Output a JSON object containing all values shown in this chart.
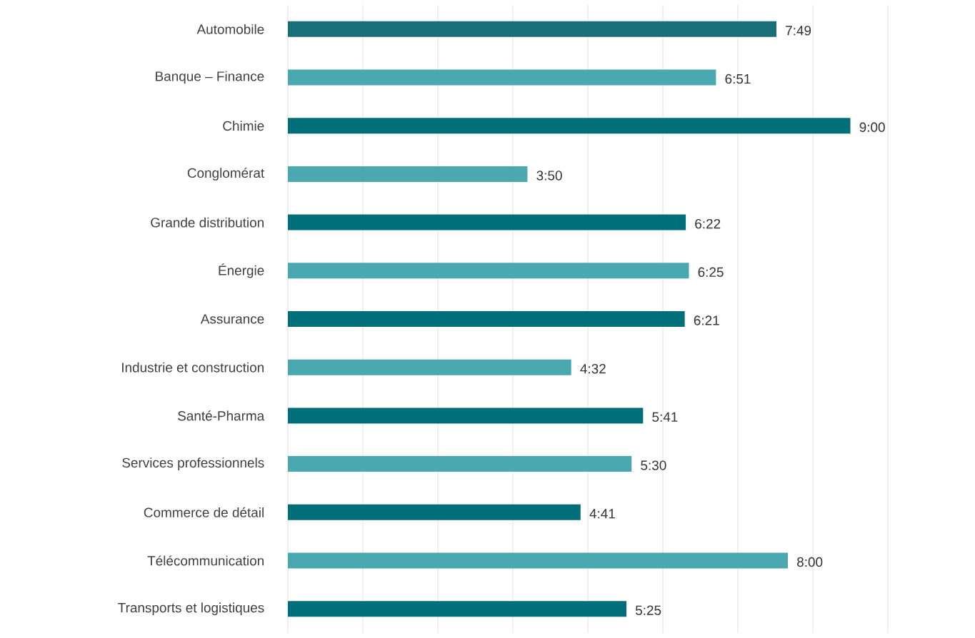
{
  "chart_data": {
    "type": "bar",
    "orientation": "horizontal",
    "categories": [
      "Automobile",
      "Banque – Finance",
      "Chimie",
      "Conglomérat",
      "Grande distribution",
      "Énergie",
      "Assurance",
      "Industrie et construction",
      "Santé-Pharma",
      "Services professionnels",
      "Commerce de détail",
      "Télécommunication",
      "Transports et logistiques"
    ],
    "values": [
      469,
      411,
      540,
      230,
      382,
      385,
      381,
      272,
      341,
      330,
      281,
      480,
      325
    ],
    "value_labels": [
      "7:49",
      "6:51",
      "9:00",
      "3:50",
      "6:22",
      "6:25",
      "6:21",
      "4:32",
      "5:41",
      "5:30",
      "4:41",
      "8:00",
      "5:25"
    ],
    "colors": [
      "#1a6e7a",
      "#4aa8b0",
      "#006f79",
      "#4aa8b0",
      "#006f79",
      "#4aa8b0",
      "#006f79",
      "#4aa8b0",
      "#006f79",
      "#4aa8b0",
      "#006f79",
      "#4aa8b0",
      "#006f79"
    ],
    "xlim": [
      0,
      576
    ],
    "xticks": [
      {
        "value": 0,
        "label": null
      },
      {
        "value": 72,
        "label": null
      },
      {
        "value": 144,
        "label": null
      },
      {
        "value": 216,
        "label": null
      },
      {
        "value": 288,
        "label": null
      },
      {
        "value": 360,
        "label": null
      },
      {
        "value": 432,
        "label": null
      },
      {
        "value": 504,
        "label": null
      },
      {
        "value": 576,
        "label": null
      }
    ],
    "grid": "x",
    "tick_labels": "y"
  }
}
